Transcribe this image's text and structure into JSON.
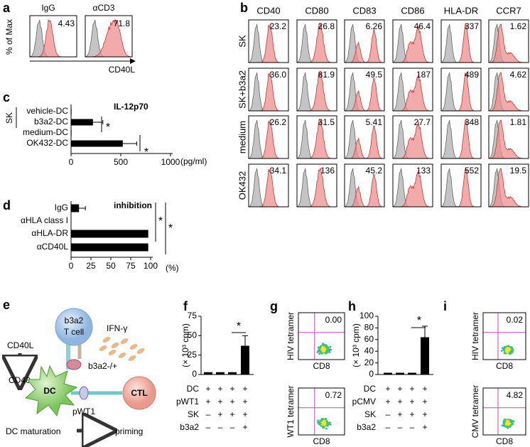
{
  "panel_labels": [
    "a",
    "b",
    "c",
    "d",
    "e",
    "f",
    "g",
    "h",
    "i"
  ],
  "panel_a": {
    "y_label": "% of Max",
    "x_label": "CD40L",
    "plots": [
      {
        "title": "IgG",
        "value": "4.43"
      },
      {
        "title": "αCD3",
        "value": "71.8"
      }
    ]
  },
  "panel_b": {
    "columns": [
      "CD40",
      "CD80",
      "CD83",
      "CD86",
      "HLA-DR",
      "CCR7"
    ],
    "rows": [
      {
        "label": "SK",
        "values": [
          "23.2",
          "26.8",
          "6.26",
          "46.4",
          "337",
          "1.62"
        ]
      },
      {
        "label": "SK+b3a2",
        "values": [
          "36.0",
          "81.9",
          "49.5",
          "187",
          "489",
          "4.62"
        ]
      },
      {
        "label": "medium",
        "values": [
          "26.2",
          "31.5",
          "5.41",
          "27.7",
          "348",
          "1.81"
        ]
      },
      {
        "label": "OK432",
        "values": [
          "34.1",
          "136",
          "45.2",
          "133",
          "552",
          "19.5"
        ]
      }
    ]
  },
  "chart_data": [
    {
      "type": "bar",
      "orientation": "horizontal",
      "title": "IL-12p70",
      "group_label": "SK",
      "categories": [
        "vehicle-DC",
        "b3a2-DC",
        "medium-DC",
        "OK432-DC"
      ],
      "values": [
        5,
        220,
        5,
        520
      ],
      "errors": [
        null,
        100,
        null,
        140
      ],
      "color": "#000000",
      "xlim": [
        0,
        1000
      ],
      "xticks": [
        0,
        500,
        1000
      ],
      "x_unit": "(pg/ml)",
      "annotations": [
        "*",
        "*"
      ]
    },
    {
      "type": "bar",
      "orientation": "horizontal",
      "title": "inhibition",
      "categories": [
        "IgG",
        "αHLA class I",
        "αHLA-DR",
        "αCD40L"
      ],
      "values": [
        10,
        0,
        97,
        97
      ],
      "errors": [
        8,
        null,
        null,
        null
      ],
      "color": "#000000",
      "xlim": [
        0,
        100
      ],
      "xticks": [
        0,
        25,
        50,
        75,
        100
      ],
      "x_unit": "(%)",
      "annotations": [
        "*",
        "*"
      ]
    },
    {
      "type": "bar",
      "orientation": "vertical",
      "y_label": "(× 10³ cpm)",
      "values": [
        3,
        3,
        3,
        37
      ],
      "errors": [
        null,
        null,
        null,
        13
      ],
      "color": "#000000",
      "ylim": [
        0,
        75
      ],
      "yticks": [
        0,
        25,
        50,
        75
      ],
      "annotations": [
        "*"
      ],
      "table": [
        {
          "label": "DC",
          "cells": [
            "+",
            "+",
            "+",
            "+"
          ]
        },
        {
          "label": "pWT1",
          "cells": [
            "+",
            "+",
            "+",
            "+"
          ]
        },
        {
          "label": "SK",
          "cells": [
            "–",
            "+",
            "+",
            "+"
          ]
        },
        {
          "label": "b3a2",
          "cells": [
            "–",
            "–",
            "–",
            "+"
          ]
        }
      ]
    },
    {
      "type": "bar",
      "orientation": "vertical",
      "y_label": "(× 10³ cpm)",
      "values": [
        3,
        3,
        3,
        64
      ],
      "errors": [
        null,
        null,
        null,
        19
      ],
      "color": "#000000",
      "ylim": [
        0,
        100
      ],
      "yticks": [
        0,
        20,
        40,
        60,
        80,
        100
      ],
      "annotations": [
        "*"
      ],
      "table": [
        {
          "label": "DC",
          "cells": [
            "+",
            "+",
            "+",
            "+"
          ]
        },
        {
          "label": "pCMV",
          "cells": [
            "+",
            "+",
            "+",
            "+"
          ]
        },
        {
          "label": "SK",
          "cells": [
            "–",
            "+",
            "+",
            "+"
          ]
        },
        {
          "label": "b3a2",
          "cells": [
            "–",
            "–",
            "–",
            "+"
          ]
        }
      ]
    }
  ],
  "panel_e": {
    "t_cell": [
      "b3a2",
      "T cell"
    ],
    "ifn": "IFN-γ",
    "cd40l": "CD40L",
    "cd40": "CD40",
    "b3a2": "b3a2-/+",
    "dc": "DC",
    "pwt1": "pWT1",
    "ctl": "CTL",
    "dc_maturation": "DC maturation",
    "priming": "priming"
  },
  "panel_g": {
    "x_label": "CD8",
    "plots": [
      {
        "y_label": "HIV tetramer",
        "value": "0.00"
      },
      {
        "y_label": "WT1 tetramer",
        "value": "0.72"
      }
    ]
  },
  "panel_i": {
    "x_label": "CD8",
    "plots": [
      {
        "y_label": "HIV tetramer",
        "value": "0.02"
      },
      {
        "y_label": "CMV tetramer",
        "value": "4.82"
      }
    ]
  }
}
